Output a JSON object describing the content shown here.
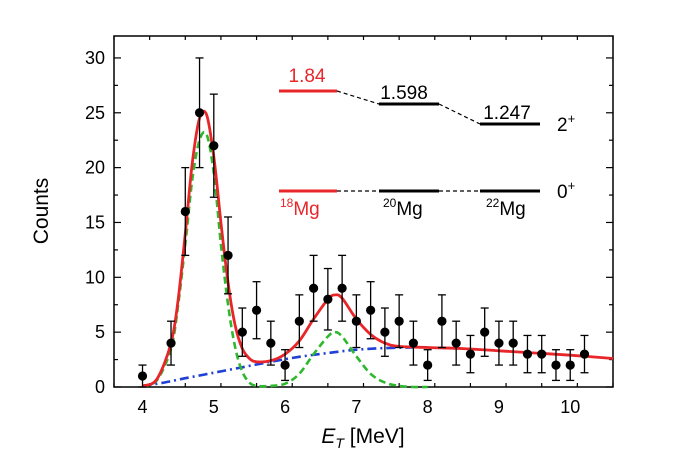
{
  "chart_data": {
    "type": "scatter",
    "xlabel_italic": "E",
    "xlabel_sub": "T",
    "xlabel_unit": " [MeV]",
    "ylabel": "Counts",
    "xlim": [
      3.6,
      10.6
    ],
    "ylim": [
      0,
      32
    ],
    "x_ticks": [
      4,
      5,
      6,
      7,
      8,
      9,
      10
    ],
    "y_ticks": [
      0,
      5,
      10,
      15,
      20,
      25,
      30
    ],
    "colors": {
      "points": "#000000",
      "total_fit": "#e8262a",
      "peak_components": "#2eb82e",
      "background": "#1f3fd6",
      "mg18_levels": "#e8262a",
      "other_levels": "#000000"
    },
    "series": [
      {
        "name": "data",
        "style": "points-with-errorbars",
        "points": [
          {
            "x": 4.0,
            "y": 1,
            "err": 1.0
          },
          {
            "x": 4.4,
            "y": 4,
            "err": 2.0
          },
          {
            "x": 4.6,
            "y": 16,
            "err": 4.0
          },
          {
            "x": 4.8,
            "y": 25,
            "err": 5.0
          },
          {
            "x": 5.0,
            "y": 22,
            "err": 4.7
          },
          {
            "x": 5.2,
            "y": 12,
            "err": 3.5
          },
          {
            "x": 5.4,
            "y": 5,
            "err": 2.2
          },
          {
            "x": 5.6,
            "y": 7,
            "err": 2.6
          },
          {
            "x": 5.8,
            "y": 4,
            "err": 2.0
          },
          {
            "x": 6.0,
            "y": 2,
            "err": 1.4
          },
          {
            "x": 6.2,
            "y": 6,
            "err": 2.4
          },
          {
            "x": 6.4,
            "y": 9,
            "err": 3.0
          },
          {
            "x": 6.6,
            "y": 8,
            "err": 2.8
          },
          {
            "x": 6.8,
            "y": 9,
            "err": 3.0
          },
          {
            "x": 7.0,
            "y": 6,
            "err": 2.4
          },
          {
            "x": 7.2,
            "y": 7,
            "err": 2.6
          },
          {
            "x": 7.4,
            "y": 5,
            "err": 2.2
          },
          {
            "x": 7.6,
            "y": 6,
            "err": 2.4
          },
          {
            "x": 7.8,
            "y": 4,
            "err": 2.0
          },
          {
            "x": 8.0,
            "y": 2,
            "err": 1.4
          },
          {
            "x": 8.2,
            "y": 6,
            "err": 2.4
          },
          {
            "x": 8.4,
            "y": 4,
            "err": 2.0
          },
          {
            "x": 8.6,
            "y": 3,
            "err": 1.7
          },
          {
            "x": 8.8,
            "y": 5,
            "err": 2.2
          },
          {
            "x": 9.0,
            "y": 4,
            "err": 2.0
          },
          {
            "x": 9.2,
            "y": 4,
            "err": 2.0
          },
          {
            "x": 9.4,
            "y": 3,
            "err": 1.7
          },
          {
            "x": 9.6,
            "y": 3,
            "err": 1.7
          },
          {
            "x": 9.8,
            "y": 2,
            "err": 1.4
          },
          {
            "x": 10.0,
            "y": 2,
            "err": 1.4
          },
          {
            "x": 10.2,
            "y": 3,
            "err": 1.7
          }
        ]
      },
      {
        "name": "total fit",
        "style": "solid-line",
        "x": [
          4.0,
          4.2,
          4.4,
          4.5,
          4.6,
          4.7,
          4.8,
          4.9,
          5.0,
          5.1,
          5.2,
          5.3,
          5.4,
          5.5,
          5.6,
          5.8,
          6.0,
          6.2,
          6.4,
          6.6,
          6.7,
          6.8,
          7.0,
          7.2,
          7.4,
          7.6,
          8.0,
          8.5,
          9.0,
          9.5,
          10.0,
          10.6
        ],
        "y": [
          0.1,
          0.7,
          4.0,
          8.0,
          14.0,
          20.5,
          24.5,
          24.8,
          21.0,
          15.0,
          9.5,
          5.6,
          3.5,
          2.6,
          2.3,
          2.4,
          3.0,
          4.2,
          6.2,
          8.0,
          8.4,
          8.1,
          6.2,
          4.8,
          4.0,
          3.7,
          3.6,
          3.5,
          3.3,
          3.1,
          2.9,
          2.6
        ]
      },
      {
        "name": "peak components",
        "style": "dashed-line",
        "x": [
          4.0,
          4.2,
          4.4,
          4.5,
          4.6,
          4.7,
          4.8,
          4.9,
          5.0,
          5.1,
          5.2,
          5.3,
          5.4,
          5.5,
          5.6,
          5.8,
          6.0,
          6.2,
          6.4,
          6.6,
          6.7,
          6.8,
          7.0,
          7.2,
          7.4,
          7.6,
          7.8,
          8.0
        ],
        "y": [
          0.1,
          0.6,
          3.5,
          7.5,
          13.0,
          19.0,
          22.5,
          23.0,
          19.5,
          13.0,
          7.5,
          3.6,
          1.4,
          0.4,
          0.1,
          0.1,
          0.3,
          1.2,
          3.0,
          4.6,
          5.0,
          4.6,
          2.8,
          1.2,
          0.4,
          0.1,
          0.0,
          0.0
        ]
      },
      {
        "name": "background",
        "style": "dash-dot-line",
        "x": [
          4.0,
          4.3,
          4.6,
          5.0,
          5.4,
          5.8,
          6.2,
          6.6,
          7.0,
          7.4,
          7.8
        ],
        "y": [
          0.1,
          0.4,
          0.8,
          1.3,
          1.8,
          2.3,
          2.75,
          3.1,
          3.4,
          3.55,
          3.6
        ]
      }
    ],
    "level_scheme": {
      "levels": [
        {
          "nucleus_mass": "18",
          "nucleus_symbol": "Mg",
          "energy_label": "1.84",
          "emphasis": "red"
        },
        {
          "nucleus_mass": "20",
          "nucleus_symbol": "Mg",
          "energy_label": "1.598",
          "emphasis": "black"
        },
        {
          "nucleus_mass": "22",
          "nucleus_symbol": "Mg",
          "energy_label": "1.247",
          "emphasis": "black"
        }
      ],
      "upper_state": {
        "value": "2",
        "parity": "+"
      },
      "lower_state": {
        "value": "0",
        "parity": "+"
      }
    }
  }
}
